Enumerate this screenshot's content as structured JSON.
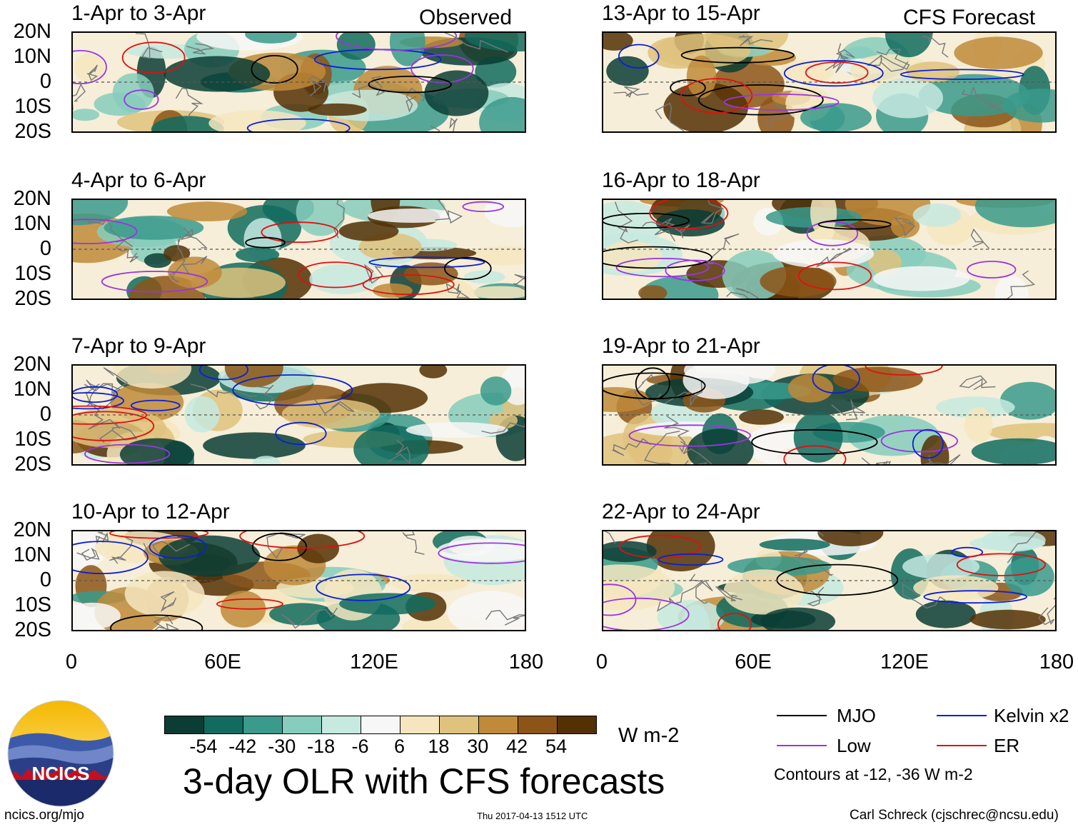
{
  "header": {
    "observed_label": "Observed",
    "forecast_label": "CFS Forecast"
  },
  "panels": [
    {
      "title": "1-Apr to 3-Apr"
    },
    {
      "title": "4-Apr to 6-Apr"
    },
    {
      "title": "7-Apr to 9-Apr"
    },
    {
      "title": "10-Apr to 12-Apr"
    },
    {
      "title": "13-Apr to 15-Apr"
    },
    {
      "title": "16-Apr to 18-Apr"
    },
    {
      "title": "19-Apr to 21-Apr"
    },
    {
      "title": "22-Apr to 24-Apr"
    }
  ],
  "axes": {
    "y_ticks": [
      "20N",
      "10N",
      "0",
      "10S",
      "20S"
    ],
    "x_ticks": [
      "0",
      "60E",
      "120E",
      "180"
    ]
  },
  "colorbar": {
    "colors": [
      "#0b3d35",
      "#116b5e",
      "#3a9a8c",
      "#86cdbd",
      "#c6e9e0",
      "#f7f7f7",
      "#f5e6bf",
      "#dfc27d",
      "#bf8a3a",
      "#8c5517",
      "#543005"
    ],
    "labels": [
      "-54",
      "-42",
      "-30",
      "-18",
      "-6",
      "6",
      "18",
      "30",
      "42",
      "54"
    ],
    "units": "W m-2"
  },
  "legend": {
    "items": [
      {
        "label": "MJO",
        "color": "#000000"
      },
      {
        "label": "Kelvin x2",
        "color": "#0a1fd6"
      },
      {
        "label": "Low",
        "color": "#9a35e0"
      },
      {
        "label": "ER",
        "color": "#e01010"
      }
    ],
    "contours_note": "Contours at -12, -36 W m-2"
  },
  "main_title": "3-day OLR with CFS forecasts",
  "logo_text": "NCICS",
  "footer": {
    "left": "ncics.org/mjo",
    "center": "Thu 2017-04-13 1512 UTC",
    "right": "Carl Schreck (cjschrec@ncsu.edu)"
  },
  "chart_data": {
    "type": "heatmap",
    "title": "3-day OLR with CFS forecasts",
    "xlabel": "",
    "ylabel": "",
    "xlim": [
      0,
      180
    ],
    "ylim": [
      -20,
      20
    ],
    "x_tick_labels": [
      "0",
      "60E",
      "120E",
      "180"
    ],
    "y_tick_labels": [
      "20N",
      "10N",
      "0",
      "10S",
      "20S"
    ],
    "contour_levels": [
      -12,
      -36
    ],
    "shading_levels": [
      -54,
      -42,
      -30,
      -18,
      -6,
      6,
      18,
      30,
      42,
      54
    ],
    "units": "W m-2"
  }
}
